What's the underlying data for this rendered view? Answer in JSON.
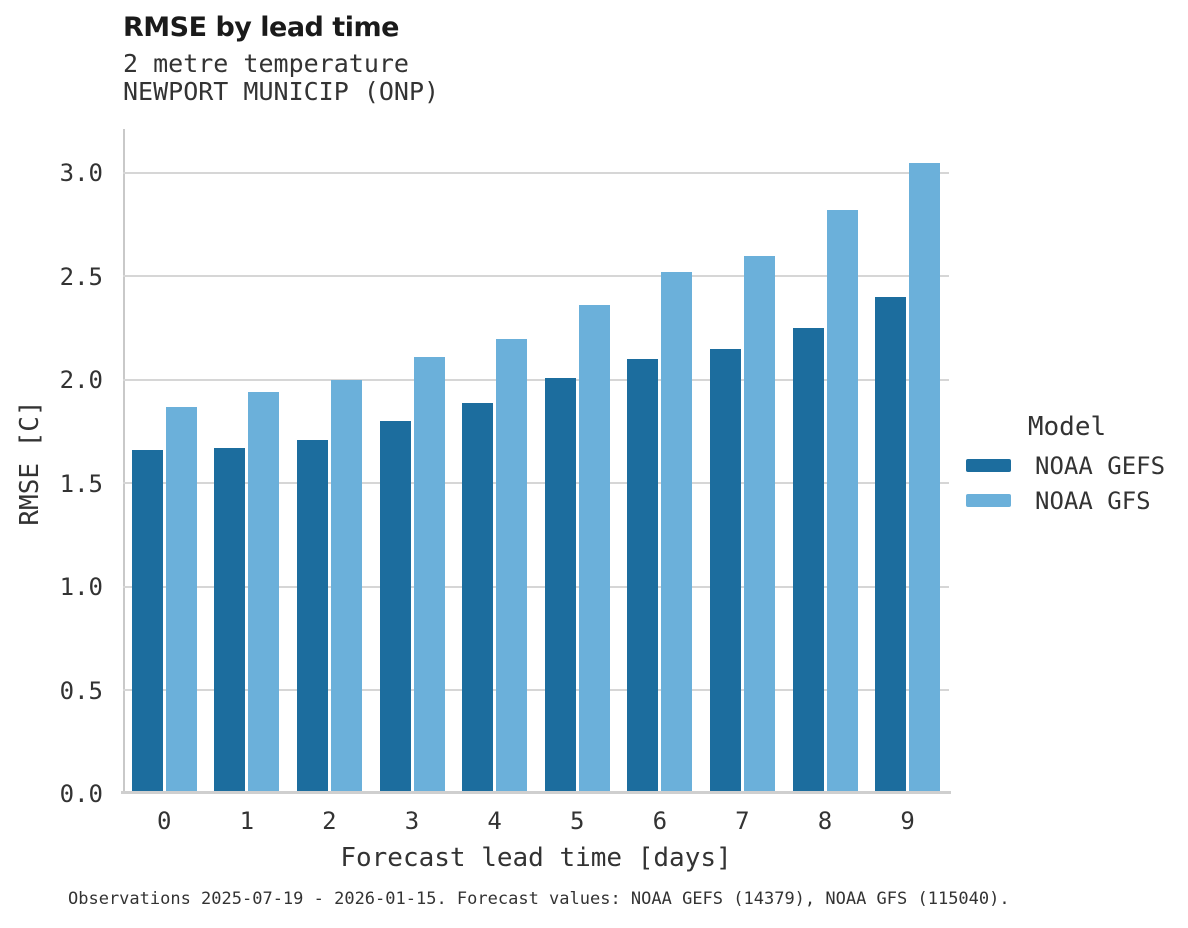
{
  "chart_data": {
    "type": "bar",
    "title": "RMSE by lead time",
    "subtitle_lines": [
      "2 metre temperature",
      "NEWPORT MUNICIP (ONP)"
    ],
    "categories": [
      "0",
      "1",
      "2",
      "3",
      "4",
      "5",
      "6",
      "7",
      "8",
      "9"
    ],
    "series": [
      {
        "name": "NOAA GEFS",
        "color": "#1c6d9e",
        "values": [
          1.66,
          1.67,
          1.71,
          1.8,
          1.89,
          2.01,
          2.1,
          2.15,
          2.25,
          2.4
        ]
      },
      {
        "name": "NOAA GFS",
        "color": "#6bb0da",
        "values": [
          1.87,
          1.94,
          2.0,
          2.11,
          2.2,
          2.36,
          2.52,
          2.6,
          2.82,
          3.05
        ]
      }
    ],
    "xlabel": "Forecast lead time [days]",
    "ylabel": "RMSE [C]",
    "ylim": [
      0,
      3.2
    ],
    "yticks": [
      0.0,
      0.5,
      1.0,
      1.5,
      2.0,
      2.5,
      3.0
    ],
    "ytick_labels": [
      "0.0",
      "0.5",
      "1.0",
      "1.5",
      "2.0",
      "2.5",
      "3.0"
    ],
    "grid": true,
    "legend": {
      "title": "Model",
      "position": "right"
    },
    "caption": "Observations 2025-07-19 - 2026-01-15. Forecast values: NOAA GEFS (14379), NOAA GFS (115040)."
  }
}
